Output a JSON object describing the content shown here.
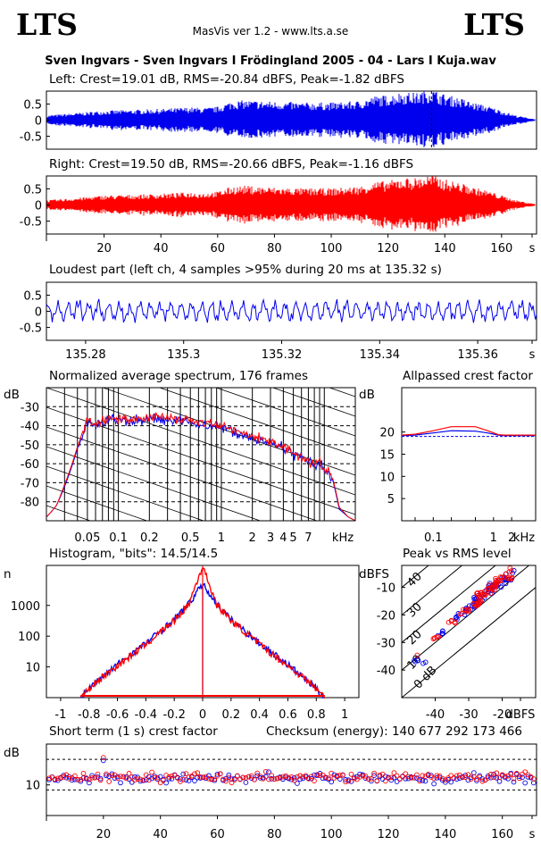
{
  "header": {
    "logo_left": "LTS",
    "logo_right": "LTS",
    "app": "MasVis ver 1.2 - www.lts.a.se",
    "file": "Sven Ingvars - Sven Ingvars I Frödingland 2005 - 04 - Lars I Kuja.wav"
  },
  "colors": {
    "left": "#0000ee",
    "right": "#ff0000",
    "grid": "#000000"
  },
  "panels": {
    "left_wave": {
      "title": "Left: Crest=19.01 dB, RMS=-20.84 dBFS, Peak=-1.82 dBFS"
    },
    "right_wave": {
      "title": "Right: Crest=19.50 dB, RMS=-20.66 dBFS, Peak=-1.16 dBFS"
    },
    "loudest": {
      "title": "Loudest part (left  ch, 4 samples >95% during 20 ms at 135.32 s)"
    },
    "spectrum": {
      "title": "Normalized average spectrum, 176 frames",
      "unit_y": "dB",
      "unit_x": "kHz"
    },
    "allpass": {
      "title": "Allpassed crest factor",
      "unit_y": "dB",
      "unit_x": "kHz"
    },
    "histogram": {
      "title": "Histogram, \"bits\": 14.5/14.5",
      "unit_y": "n"
    },
    "peakrms": {
      "title": "Peak vs RMS level",
      "unit_y": "dBFS",
      "unit_x": "dBFS"
    },
    "crest": {
      "title": "Short term (1 s) crest factor",
      "checksum": "Checksum (energy):   140 677 292 173 466",
      "unit_y": "dB"
    }
  },
  "chart_data": [
    {
      "type": "area",
      "title": "Left: Crest=19.01 dB, RMS=-20.84 dBFS, Peak=-1.82 dBFS",
      "series": [
        {
          "name": "Left",
          "color": "#0000ee",
          "x": [
            0,
            10,
            20,
            30,
            40,
            50,
            55,
            60,
            65,
            70,
            80,
            90,
            100,
            110,
            115,
            120,
            125,
            130,
            135,
            140,
            145,
            150,
            155,
            160,
            165,
            170,
            172
          ],
          "envelope": [
            0.15,
            0.22,
            0.3,
            0.32,
            0.35,
            0.4,
            0.38,
            0.42,
            0.6,
            0.62,
            0.58,
            0.55,
            0.55,
            0.6,
            0.75,
            0.78,
            0.88,
            0.85,
            0.98,
            0.8,
            0.7,
            0.55,
            0.45,
            0.3,
            0.15,
            0.06,
            0.03
          ]
        }
      ],
      "ylim": [
        -0.9,
        0.9
      ],
      "yticks": [
        "0.5",
        "0",
        "-0.5"
      ]
    },
    {
      "type": "area",
      "title": "Right: Crest=19.50 dB, RMS=-20.66 dBFS, Peak=-1.16 dBFS",
      "series": [
        {
          "name": "Right",
          "color": "#ff0000",
          "x": [
            0,
            10,
            20,
            30,
            40,
            50,
            55,
            60,
            65,
            70,
            80,
            90,
            100,
            110,
            115,
            120,
            125,
            130,
            135,
            140,
            145,
            150,
            155,
            160,
            165,
            170,
            172
          ],
          "envelope": [
            0.15,
            0.22,
            0.3,
            0.32,
            0.35,
            0.4,
            0.38,
            0.42,
            0.58,
            0.6,
            0.55,
            0.52,
            0.52,
            0.58,
            0.72,
            0.75,
            0.85,
            0.85,
            0.95,
            0.8,
            0.7,
            0.55,
            0.45,
            0.3,
            0.15,
            0.06,
            0.03
          ]
        }
      ],
      "ylim": [
        -0.9,
        0.9
      ],
      "yticks": [
        "0.5",
        "0",
        "-0.5"
      ],
      "xticks": [
        "20",
        "40",
        "60",
        "80",
        "100",
        "120",
        "140",
        "160",
        "s"
      ],
      "xlim": [
        0,
        172
      ]
    },
    {
      "type": "line",
      "title": "Loudest part (left  ch, 4 samples >95% during 20 ms at 135.32 s)",
      "series": [
        {
          "name": "Left",
          "color": "#0000ee",
          "amplitude": 0.5
        }
      ],
      "ylim": [
        -0.9,
        0.9
      ],
      "yticks": [
        "0.5",
        "0",
        "-0.5"
      ],
      "xlim": [
        135.272,
        135.372
      ],
      "xticks": [
        "135.28",
        "135.3",
        "135.32",
        "135.34",
        "135.36",
        "s"
      ]
    },
    {
      "type": "line",
      "title": "Normalized average spectrum, 176 frames",
      "xscale": "log",
      "xlim": [
        0.02,
        20
      ],
      "ylim": [
        -90,
        -20
      ],
      "yticks": [
        "-30",
        "-40",
        "-50",
        "-60",
        "-70",
        "-80"
      ],
      "xticks": [
        "0.05",
        "0.1",
        "0.2",
        "0.5",
        "1",
        "2",
        "3",
        "4",
        "5",
        "7",
        "kHz"
      ],
      "series": [
        {
          "name": "Left",
          "color": "#0000ee",
          "x": [
            0.02,
            0.025,
            0.03,
            0.04,
            0.05,
            0.06,
            0.08,
            0.1,
            0.15,
            0.2,
            0.3,
            0.5,
            0.7,
            1,
            1.5,
            2,
            3,
            4,
            5,
            7,
            8,
            9,
            10,
            12,
            14,
            17,
            20
          ],
          "y": [
            -88,
            -82,
            -72,
            -52,
            -38,
            -40,
            -37,
            -37,
            -38,
            -36,
            -37,
            -38,
            -40,
            -41,
            -44,
            -47,
            -49,
            -52,
            -55,
            -59,
            -62,
            -60,
            -64,
            -68,
            -84,
            -88,
            -90
          ]
        },
        {
          "name": "Right",
          "color": "#ff0000",
          "x": [
            0.02,
            0.025,
            0.03,
            0.04,
            0.05,
            0.06,
            0.08,
            0.1,
            0.15,
            0.2,
            0.3,
            0.5,
            0.7,
            1,
            1.5,
            2,
            3,
            4,
            5,
            7,
            8,
            9,
            10,
            12,
            14,
            17,
            20
          ],
          "y": [
            -88,
            -82,
            -71,
            -51,
            -37,
            -39,
            -36,
            -36,
            -37,
            -35,
            -36,
            -37,
            -39,
            -40,
            -43,
            -46,
            -48,
            -51,
            -54,
            -58,
            -61,
            -59,
            -63,
            -67,
            -83,
            -88,
            -90
          ]
        }
      ]
    },
    {
      "type": "line",
      "title": "Allpassed crest factor",
      "xscale": "log",
      "xlim": [
        0.03,
        5
      ],
      "ylim": [
        0,
        30
      ],
      "yticks": [
        "20",
        "15",
        "10",
        "5"
      ],
      "xticks": [
        "0.1",
        "1",
        "2",
        "kHz"
      ],
      "reference": 19.0,
      "series": [
        {
          "name": "Left",
          "color": "#0000ee",
          "x": [
            0.03,
            0.05,
            0.1,
            0.2,
            0.5,
            0.8,
            1.2,
            1.5,
            5
          ],
          "y": [
            19.2,
            19.3,
            19.8,
            20.3,
            20.2,
            19.8,
            19.3,
            19.2,
            19.2
          ]
        },
        {
          "name": "Right",
          "color": "#ff0000",
          "x": [
            0.03,
            0.05,
            0.1,
            0.2,
            0.5,
            0.8,
            1.2,
            1.5,
            5
          ],
          "y": [
            19.3,
            19.5,
            20.3,
            21.2,
            21.2,
            20.3,
            19.4,
            19.3,
            19.3
          ]
        }
      ]
    },
    {
      "type": "bar",
      "title": "Histogram, \"bits\": 14.5/14.5",
      "yscale": "log",
      "ylim": [
        1,
        20000
      ],
      "xlim": [
        -1.1,
        1.1
      ],
      "xticks": [
        "-1",
        "-0.8",
        "-0.6",
        "-0.4",
        "-0.2",
        "0",
        "0.2",
        "0.4",
        "0.6",
        "0.8",
        "1"
      ],
      "yticks": [
        "1000",
        "100",
        "10"
      ],
      "series": [
        {
          "name": "Left",
          "color": "#0000ee",
          "x": [
            -0.86,
            -0.8,
            -0.7,
            -0.6,
            -0.4,
            -0.2,
            -0.1,
            0,
            0.1,
            0.2,
            0.4,
            0.6,
            0.7,
            0.8,
            0.86
          ],
          "y": [
            1,
            2,
            5,
            12,
            60,
            350,
            1100,
            5000,
            1100,
            350,
            60,
            12,
            5,
            2,
            1
          ]
        },
        {
          "name": "Right",
          "color": "#ff0000",
          "x": [
            -0.86,
            -0.8,
            -0.7,
            -0.6,
            -0.4,
            -0.2,
            -0.1,
            0,
            0.1,
            0.2,
            0.4,
            0.6,
            0.7,
            0.8,
            0.86
          ],
          "y": [
            1,
            2,
            5,
            11,
            55,
            330,
            1050,
            19000,
            1050,
            330,
            55,
            11,
            5,
            2,
            1
          ]
        }
      ]
    },
    {
      "type": "scatter",
      "title": "Peak vs RMS level",
      "xlim": [
        -50,
        -10
      ],
      "ylim": [
        -50,
        -2
      ],
      "xticks": [
        "-40",
        "-30",
        "-20",
        "dBFS"
      ],
      "yticks": [
        "-10",
        "-20",
        "-30",
        "-40"
      ],
      "diagonal_labels": [
        "0 dB",
        "10",
        "20",
        "30",
        "40"
      ],
      "series": [
        {
          "name": "Left",
          "color": "#0000ee",
          "x": [
            -45,
            -38,
            -34,
            -31,
            -29,
            -28,
            -27,
            -26,
            -25,
            -24,
            -23,
            -22,
            -21,
            -20,
            -19,
            -18,
            -17
          ],
          "y": [
            -37,
            -27,
            -21,
            -18,
            -17,
            -15,
            -14,
            -13,
            -12,
            -11,
            -10,
            -9,
            -9,
            -8,
            -7,
            -6,
            -5
          ]
        },
        {
          "name": "Right",
          "color": "#ff0000",
          "x": [
            -46,
            -40,
            -35,
            -32,
            -30,
            -28,
            -27,
            -26,
            -25,
            -24,
            -23,
            -22,
            -21,
            -20,
            -19,
            -18,
            -17
          ],
          "y": [
            -36,
            -28,
            -22,
            -19,
            -18,
            -16,
            -15,
            -13,
            -12,
            -11,
            -10,
            -9,
            -8,
            -7,
            -6,
            -6,
            -4
          ]
        }
      ]
    },
    {
      "type": "scatter",
      "title": "Short term (1 s) crest factor",
      "xlim": [
        0,
        172
      ],
      "ylim": [
        4,
        18
      ],
      "yticks": [
        "10"
      ],
      "xticks": [
        "20",
        "40",
        "60",
        "80",
        "100",
        "120",
        "140",
        "160",
        "s"
      ],
      "reference_lines": [
        15,
        9
      ],
      "series": [
        {
          "name": "Left",
          "color": "#0000ee",
          "mean": 11.3
        },
        {
          "name": "Right",
          "color": "#ff0000",
          "mean": 11.5
        }
      ]
    }
  ]
}
